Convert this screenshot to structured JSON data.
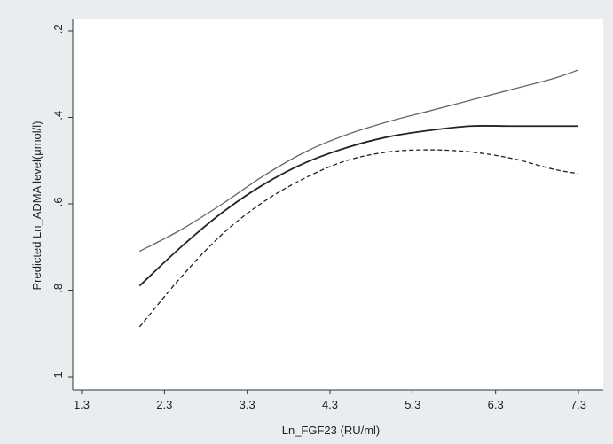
{
  "chart_data": {
    "type": "line",
    "title": "",
    "xlabel": "Ln_FGF23 (RU/ml)",
    "ylabel": "Predicted Ln_ADMA level(μmol/l)",
    "xlim": [
      1.3,
      7.3
    ],
    "ylim": [
      -1.0,
      -0.2
    ],
    "x_ticks": [
      "1.3",
      "2.3",
      "3.3",
      "4.3",
      "5.3",
      "6.3",
      "7.3"
    ],
    "y_ticks": [
      "-1",
      "-.8",
      "-.6",
      "-.4",
      "-.2"
    ],
    "grid": false,
    "legend": "none",
    "colors": {
      "background": "#e9edf0",
      "plot_area": "#ffffff",
      "axis": "#333333",
      "series_line": "#1a2530",
      "upper_ci": "#666666",
      "lower_ci": "#222222"
    },
    "series": [
      {
        "style": "solid",
        "x": [
          2.0,
          2.5,
          3.0,
          3.5,
          4.0,
          4.5,
          5.0,
          5.5,
          6.0,
          6.5,
          7.0,
          7.3
        ],
        "y": [
          -0.79,
          -0.7,
          -0.62,
          -0.555,
          -0.505,
          -0.47,
          -0.445,
          -0.43,
          -0.42,
          -0.42,
          -0.42,
          -0.42
        ]
      },
      {
        "style": "solid",
        "x": [
          2.0,
          2.5,
          3.0,
          3.5,
          4.0,
          4.5,
          5.0,
          5.5,
          6.0,
          6.5,
          7.0,
          7.3
        ],
        "y": [
          -0.71,
          -0.66,
          -0.6,
          -0.535,
          -0.48,
          -0.44,
          -0.41,
          -0.385,
          -0.36,
          -0.335,
          -0.31,
          -0.29
        ]
      },
      {
        "style": "dashed",
        "x": [
          2.0,
          2.5,
          3.0,
          3.5,
          4.0,
          4.5,
          5.0,
          5.5,
          6.0,
          6.5,
          7.0,
          7.3
        ],
        "y": [
          -0.885,
          -0.77,
          -0.67,
          -0.595,
          -0.54,
          -0.5,
          -0.48,
          -0.475,
          -0.48,
          -0.495,
          -0.52,
          -0.53
        ]
      }
    ]
  }
}
